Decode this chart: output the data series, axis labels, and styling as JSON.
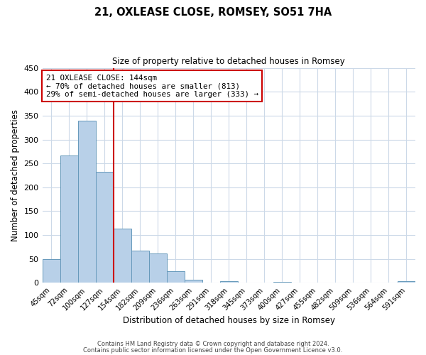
{
  "title": "21, OXLEASE CLOSE, ROMSEY, SO51 7HA",
  "subtitle": "Size of property relative to detached houses in Romsey",
  "xlabel": "Distribution of detached houses by size in Romsey",
  "ylabel": "Number of detached properties",
  "bin_labels": [
    "45sqm",
    "72sqm",
    "100sqm",
    "127sqm",
    "154sqm",
    "182sqm",
    "209sqm",
    "236sqm",
    "263sqm",
    "291sqm",
    "318sqm",
    "345sqm",
    "373sqm",
    "400sqm",
    "427sqm",
    "455sqm",
    "482sqm",
    "509sqm",
    "536sqm",
    "564sqm",
    "591sqm"
  ],
  "bar_heights": [
    50,
    267,
    340,
    232,
    114,
    68,
    62,
    25,
    7,
    0,
    3,
    0,
    0,
    2,
    0,
    0,
    0,
    0,
    0,
    0,
    4
  ],
  "bar_color": "#b8d0e8",
  "bar_edge_color": "#6699bb",
  "vline_color": "#cc0000",
  "vline_index": 3.5,
  "ylim": [
    0,
    450
  ],
  "yticks": [
    0,
    50,
    100,
    150,
    200,
    250,
    300,
    350,
    400,
    450
  ],
  "annotation_line1": "21 OXLEASE CLOSE: 144sqm",
  "annotation_line2": "← 70% of detached houses are smaller (813)",
  "annotation_line3": "29% of semi-detached houses are larger (333) →",
  "annotation_box_color": "#ffffff",
  "annotation_box_edge": "#cc0000",
  "footer_line1": "Contains HM Land Registry data © Crown copyright and database right 2024.",
  "footer_line2": "Contains public sector information licensed under the Open Government Licence v3.0.",
  "background_color": "#ffffff",
  "grid_color": "#ccd9e8"
}
